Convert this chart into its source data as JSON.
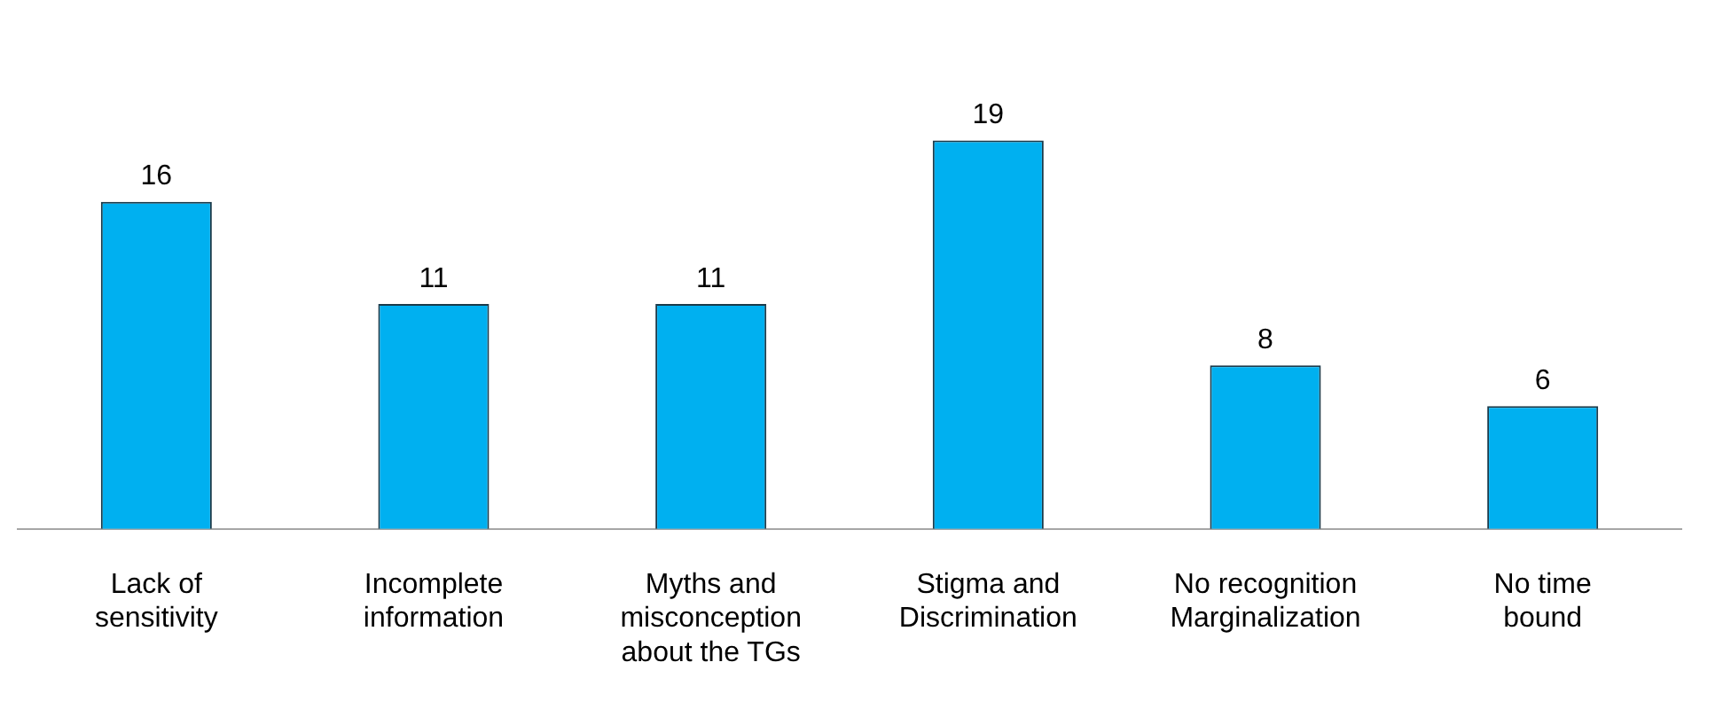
{
  "chart_data": {
    "type": "bar",
    "categories": [
      "Lack of\nsensitivity",
      "Incomplete\ninformation",
      "Myths and\nmisconception\nabout the TGs",
      "Stigma and\nDiscrimination",
      "No recognition\nMarginalization",
      "No time\nbound"
    ],
    "values": [
      16,
      11,
      11,
      19,
      8,
      6
    ],
    "color": "#00b0f0",
    "data_labels": true,
    "grid": false,
    "legend": false,
    "tick_labels": "x"
  }
}
